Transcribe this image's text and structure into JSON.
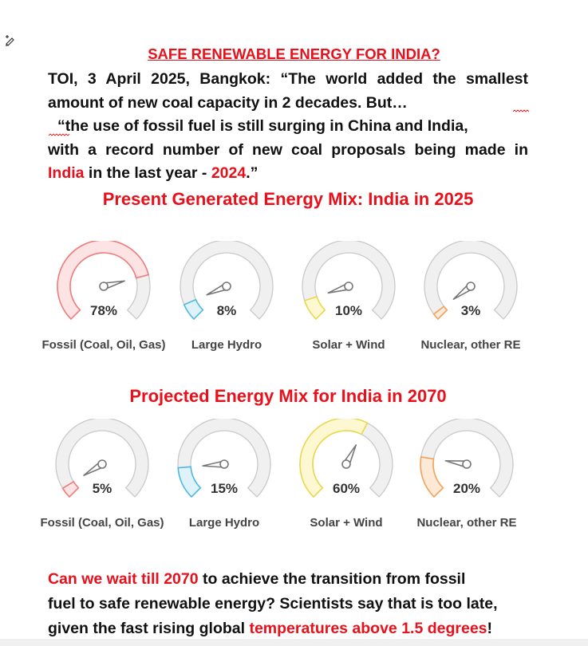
{
  "title": "SAFE RENEWABLE ENERGY FOR INDIA?",
  "intro": {
    "line1": "TOI, 3 April 2025, Bangkok: “The world added the smallest",
    "line2": "amount of new coal capacity in 2 decades. But…",
    "line3": "“the use of fossil fuel is still surging in China and India,",
    "line4": "with a record number of new coal proposals being made in",
    "line5_country": "India",
    "line5_mid": " in the last year - ",
    "line5_year": "2024",
    "line5_end": ".”"
  },
  "present_heading": "Present Generated Energy Mix: India in 2025",
  "projected_heading": "Projected Energy Mix for India in 2070",
  "present_gauges": [
    {
      "label": "Fossil (Coal, Oil, Gas)",
      "value_text": "78%",
      "value": 78,
      "color": "#ef7b7b",
      "fill": "#fde3e3"
    },
    {
      "label": "Large Hydro",
      "value_text": "8%",
      "value": 8,
      "color": "#4db8e0",
      "fill": "#dff2fa"
    },
    {
      "label": "Solar + Wind",
      "value_text": "10%",
      "value": 10,
      "color": "#e8d94a",
      "fill": "#fdf8d2"
    },
    {
      "label": "Nuclear, other RE",
      "value_text": "3%",
      "value": 3,
      "color": "#f0a35c",
      "fill": "#fde9d6"
    }
  ],
  "projected_gauges": [
    {
      "label": "Fossil (Coal, Oil, Gas)",
      "value_text": "5%",
      "value": 5,
      "color": "#ef7b7b",
      "fill": "#fde3e3"
    },
    {
      "label": "Large Hydro",
      "value_text": "15%",
      "value": 15,
      "color": "#4db8e0",
      "fill": "#dff2fa"
    },
    {
      "label": "Solar + Wind",
      "value_text": "60%",
      "value": 60,
      "color": "#e8d94a",
      "fill": "#fdf8d2"
    },
    {
      "label": "Nuclear, other RE",
      "value_text": "20%",
      "value": 20,
      "color": "#f0a35c",
      "fill": "#fde9d6"
    }
  ],
  "closing": {
    "part1_red": "Can we wait till 2070",
    "part1_rest": " to achieve the transition from fossil",
    "line2": "fuel to safe renewable energy? Scientists say that is too late,",
    "line3_start": "given the fast rising global ",
    "line3_red": "temperatures above 1.5 degrees",
    "line3_end": "!"
  },
  "colors": {
    "accent_red": "#e8101a",
    "track_gray": "#f0f0f0",
    "track_border": "#c9c9c9"
  },
  "icons": [
    "pen-edit-icon"
  ]
}
